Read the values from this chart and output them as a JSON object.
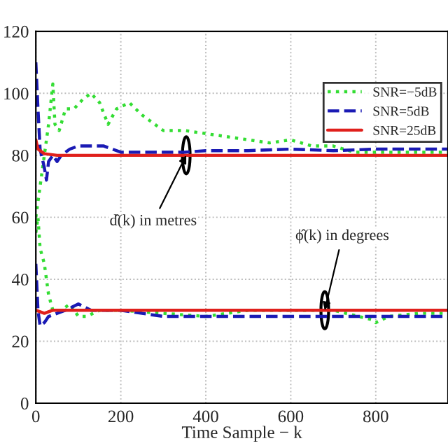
{
  "chart_data": {
    "type": "line",
    "xlabel": "Time Sample − k",
    "xlim": [
      0,
      970
    ],
    "xticks": [
      0,
      200,
      400,
      600,
      800
    ],
    "ylim": [
      0,
      120
    ],
    "yticks": [
      0,
      20,
      40,
      60,
      80,
      100,
      120
    ],
    "grid": true,
    "legend": "top right",
    "series": [
      {
        "name": "SNR=−5dB",
        "color": "#33dd33",
        "line_style": "dotted",
        "x": [
          0,
          5,
          15,
          30,
          40,
          45,
          55,
          70,
          90,
          110,
          130,
          150,
          170,
          190,
          220,
          250,
          300,
          350,
          400,
          450,
          500,
          550,
          600,
          650,
          700,
          750,
          800,
          850,
          900,
          970
        ],
        "values": [
          60,
          65,
          75,
          90,
          103,
          90,
          88,
          95,
          95,
          98,
          100,
          97,
          90,
          95,
          97,
          93,
          88,
          88,
          87,
          86,
          85,
          84,
          85,
          83,
          83,
          81,
          81,
          81,
          81,
          81
        ]
      },
      {
        "name": "SNR=5dB",
        "color": "#1a1ab4",
        "line_style": "dashed",
        "x": [
          0,
          5,
          10,
          20,
          25,
          30,
          40,
          50,
          60,
          80,
          100,
          130,
          160,
          200,
          250,
          300,
          350,
          400,
          500,
          600,
          700,
          800,
          900,
          970
        ],
        "values": [
          110,
          95,
          82,
          76,
          72,
          78,
          80,
          78,
          80,
          82,
          83,
          83,
          83,
          81,
          81,
          81,
          81,
          81.5,
          81.5,
          82,
          81.5,
          82,
          82,
          82
        ]
      },
      {
        "name": "SNR=25dB",
        "color": "#e0201c",
        "line_style": "solid",
        "x": [
          0,
          5,
          20,
          50,
          970
        ],
        "values": [
          85,
          82,
          80.5,
          80,
          80
        ]
      },
      {
        "color": "#33dd33",
        "line_style": "dotted",
        "x": [
          0,
          5,
          10,
          20,
          30,
          40,
          60,
          80,
          100,
          120,
          150,
          200,
          300,
          400,
          500,
          600,
          700,
          790,
          800,
          830,
          900,
          970
        ],
        "values": [
          55,
          60,
          50,
          45,
          35,
          30,
          30,
          32,
          28,
          28,
          30,
          30,
          29,
          28,
          30,
          30,
          30,
          27,
          26,
          28,
          29,
          29
        ]
      },
      {
        "color": "#1a1ab4",
        "line_style": "dashed",
        "x": [
          0,
          5,
          10,
          20,
          30,
          50,
          70,
          100,
          130,
          200,
          250,
          300,
          400,
          500,
          600,
          700,
          800,
          970
        ],
        "values": [
          45,
          30,
          25,
          26,
          28,
          29,
          30,
          32,
          30,
          30,
          29,
          28,
          28,
          28,
          28,
          28,
          28,
          28
        ]
      },
      {
        "color": "#e0201c",
        "line_style": "solid",
        "x": [
          0,
          10,
          20,
          40,
          970
        ],
        "values": [
          30,
          29.5,
          29,
          30,
          30
        ]
      }
    ],
    "annotations": [
      {
        "text": "d̂(k) in metres",
        "x": 354,
        "y": 80
      },
      {
        "text": "ϕ̂(k) in degrees",
        "x": 680,
        "y": 30
      }
    ]
  }
}
